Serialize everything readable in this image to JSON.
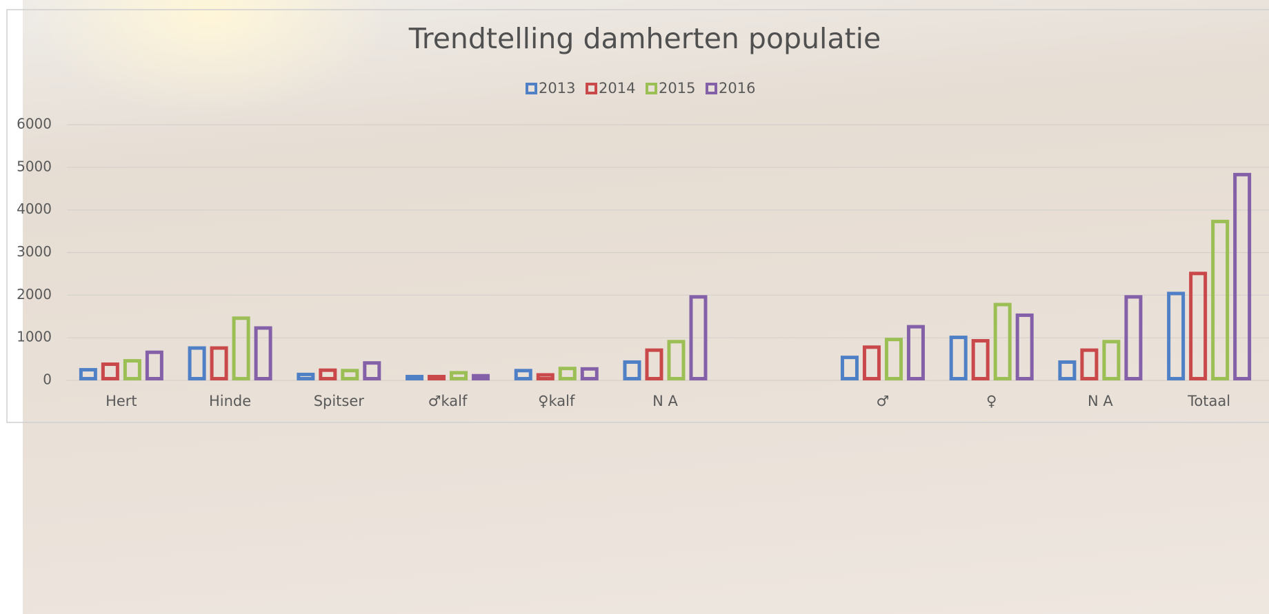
{
  "chart_data": {
    "type": "bar",
    "title": "Trendtelling damherten populatie",
    "categories": [
      "Hert",
      "Hinde",
      "Spitser",
      "♂kalf",
      "♀kalf",
      "N A",
      null,
      "♂",
      "♀",
      "N A",
      "Totaal"
    ],
    "series": [
      {
        "name": "2013",
        "color": "#4f7fc4",
        "values": [
          290,
          800,
          180,
          130,
          270,
          470,
          null,
          580,
          1050,
          470,
          2080
        ]
      },
      {
        "name": "2014",
        "color": "#c9484a",
        "values": [
          420,
          800,
          280,
          130,
          170,
          750,
          null,
          820,
          970,
          750,
          2550
        ]
      },
      {
        "name": "2015",
        "color": "#9bbf55",
        "values": [
          500,
          1500,
          270,
          220,
          320,
          950,
          null,
          1000,
          1820,
          950,
          3770
        ]
      },
      {
        "name": "2016",
        "color": "#8460a8",
        "values": [
          700,
          1270,
          450,
          150,
          310,
          2000,
          null,
          1300,
          1570,
          2000,
          4870
        ]
      }
    ],
    "ylim": [
      0,
      6000
    ],
    "yticks": [
      0,
      1000,
      2000,
      3000,
      4000,
      5000,
      6000
    ],
    "grid": true,
    "legend": "top"
  }
}
